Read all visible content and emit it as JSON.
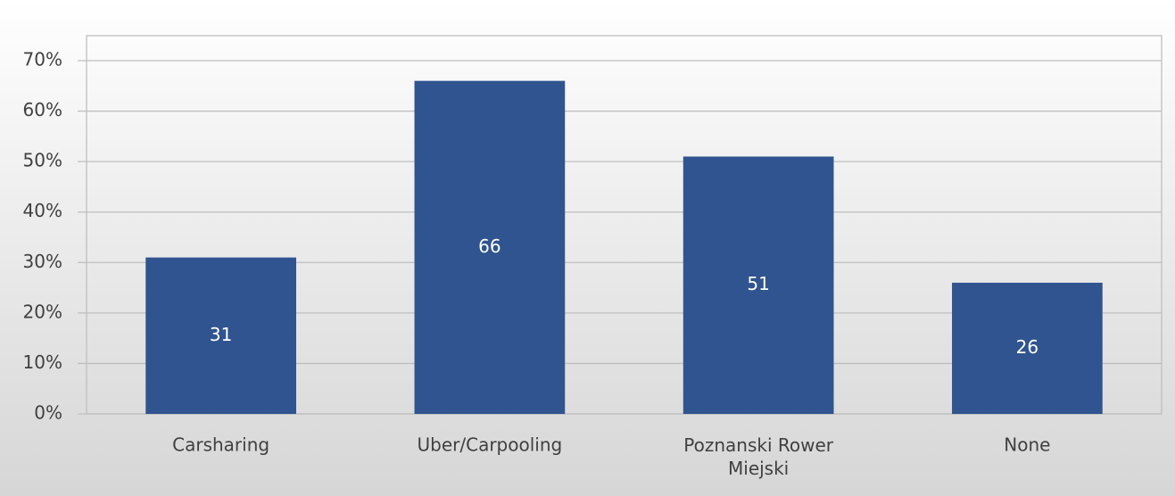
{
  "chart_data": {
    "type": "bar",
    "categories": [
      "Carsharing",
      "Uber/Carpooling",
      "Poznanski Rower Miejski",
      "None"
    ],
    "values": [
      31,
      66,
      51,
      26
    ],
    "color": "#30548f",
    "ylim": [
      0,
      70
    ],
    "yticks": [
      {
        "value": 0,
        "label": "0%"
      },
      {
        "value": 10,
        "label": "10%"
      },
      {
        "value": 20,
        "label": "20%"
      },
      {
        "value": 30,
        "label": "30%"
      },
      {
        "value": 40,
        "label": "40%"
      },
      {
        "value": 50,
        "label": "50%"
      },
      {
        "value": 60,
        "label": "60%"
      },
      {
        "value": 70,
        "label": "70%"
      }
    ],
    "grid": true
  }
}
